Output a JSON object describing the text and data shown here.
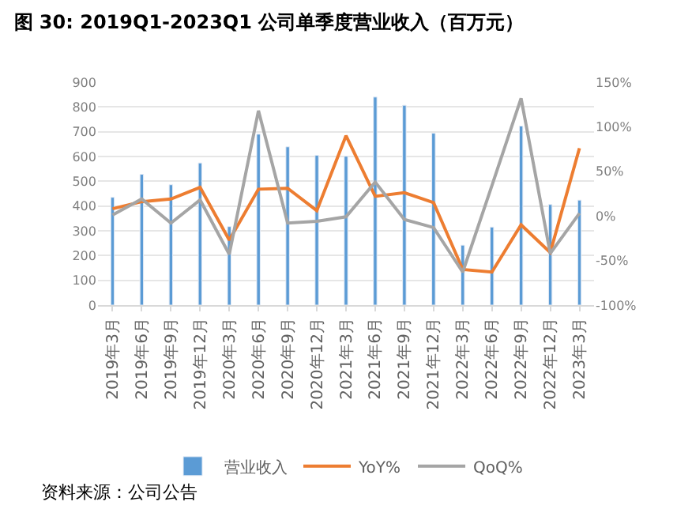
{
  "chart_data": {
    "type": "bar",
    "title": "图 30: 2019Q1-2023Q1 公司单季度营业收入（百万元）",
    "categories": [
      "2019年3月",
      "2019年6月",
      "2019年9月",
      "2019年12月",
      "2020年3月",
      "2020年6月",
      "2020年9月",
      "2020年12月",
      "2021年3月",
      "2021年6月",
      "2021年9月",
      "2021年12月",
      "2022年3月",
      "2022年6月",
      "2022年9月",
      "2022年12月",
      "2023年3月"
    ],
    "series": [
      {
        "name": "营业收入",
        "color": "#5b9bd5",
        "values": [
          435,
          528,
          486,
          574,
          317,
          690,
          639,
          605,
          601,
          840,
          807,
          694,
          242,
          315,
          723,
          406,
          424
        ]
      },
      {
        "name": "YoY%",
        "type": "line",
        "axis": "y2",
        "color": "#ed7d31",
        "values": [
          8,
          16,
          19,
          32,
          -27,
          30,
          31,
          6,
          90,
          22,
          26,
          15,
          -60,
          -63,
          -10,
          -41,
          76
        ]
      },
      {
        "name": "QoQ%",
        "type": "line",
        "axis": "y2",
        "color": "#a5a5a5",
        "values": [
          1,
          19,
          -8,
          18,
          -43,
          118,
          -8,
          -6,
          -1,
          38,
          -4,
          -13,
          -63,
          34,
          132,
          -42,
          3
        ]
      }
    ],
    "ylim": [
      0,
      900
    ],
    "yticks": [
      0,
      100,
      200,
      300,
      400,
      500,
      600,
      700,
      800,
      900
    ],
    "y2lim": [
      -100,
      150
    ],
    "y2ticks": [
      {
        "value": -100,
        "label": "-100%"
      },
      {
        "value": -50,
        "label": "-50%"
      },
      {
        "value": 0,
        "label": "0%"
      },
      {
        "value": 50,
        "label": "50%"
      },
      {
        "value": 100,
        "label": "100%"
      },
      {
        "value": 150,
        "label": "150%"
      }
    ],
    "grid": "y",
    "legend": "bottom",
    "line_style": "solid",
    "marker": "none",
    "annotations": [
      "资料来源：公司公告"
    ]
  }
}
